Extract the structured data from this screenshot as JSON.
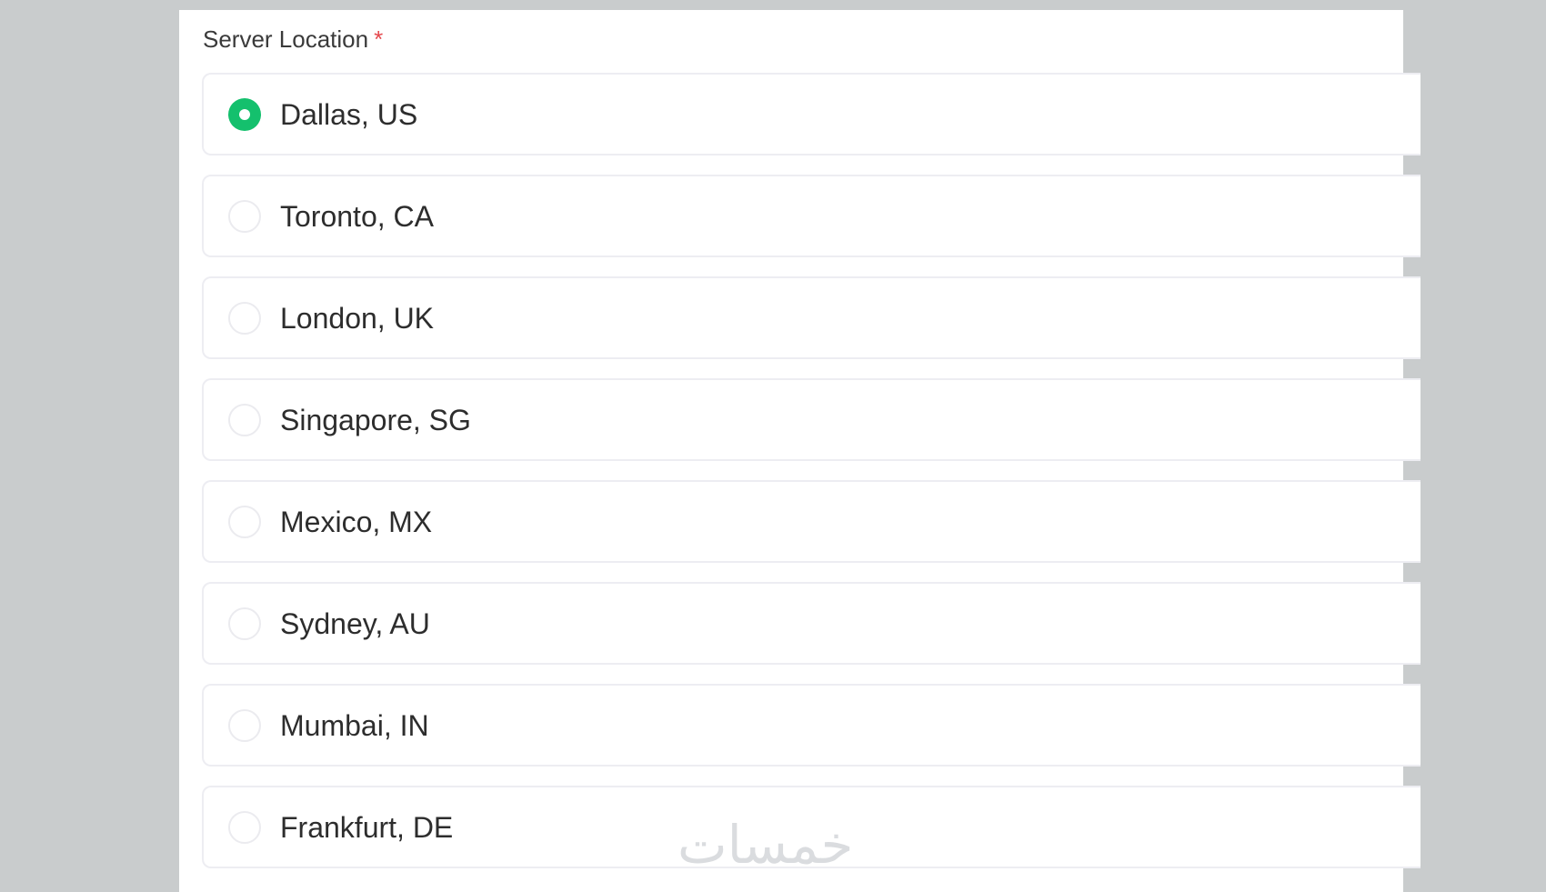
{
  "field": {
    "label": "Server Location",
    "required_marker": "*"
  },
  "options": [
    {
      "label": "Dallas, US",
      "selected": true
    },
    {
      "label": "Toronto, CA",
      "selected": false
    },
    {
      "label": "London, UK",
      "selected": false
    },
    {
      "label": "Singapore, SG",
      "selected": false
    },
    {
      "label": "Mexico, MX",
      "selected": false
    },
    {
      "label": "Sydney, AU",
      "selected": false
    },
    {
      "label": "Mumbai, IN",
      "selected": false
    },
    {
      "label": "Frankfurt, DE",
      "selected": false
    }
  ],
  "colors": {
    "accent": "#14c06d",
    "required": "#e5484d",
    "background": "#c9cccd"
  },
  "watermark": "خمسات"
}
